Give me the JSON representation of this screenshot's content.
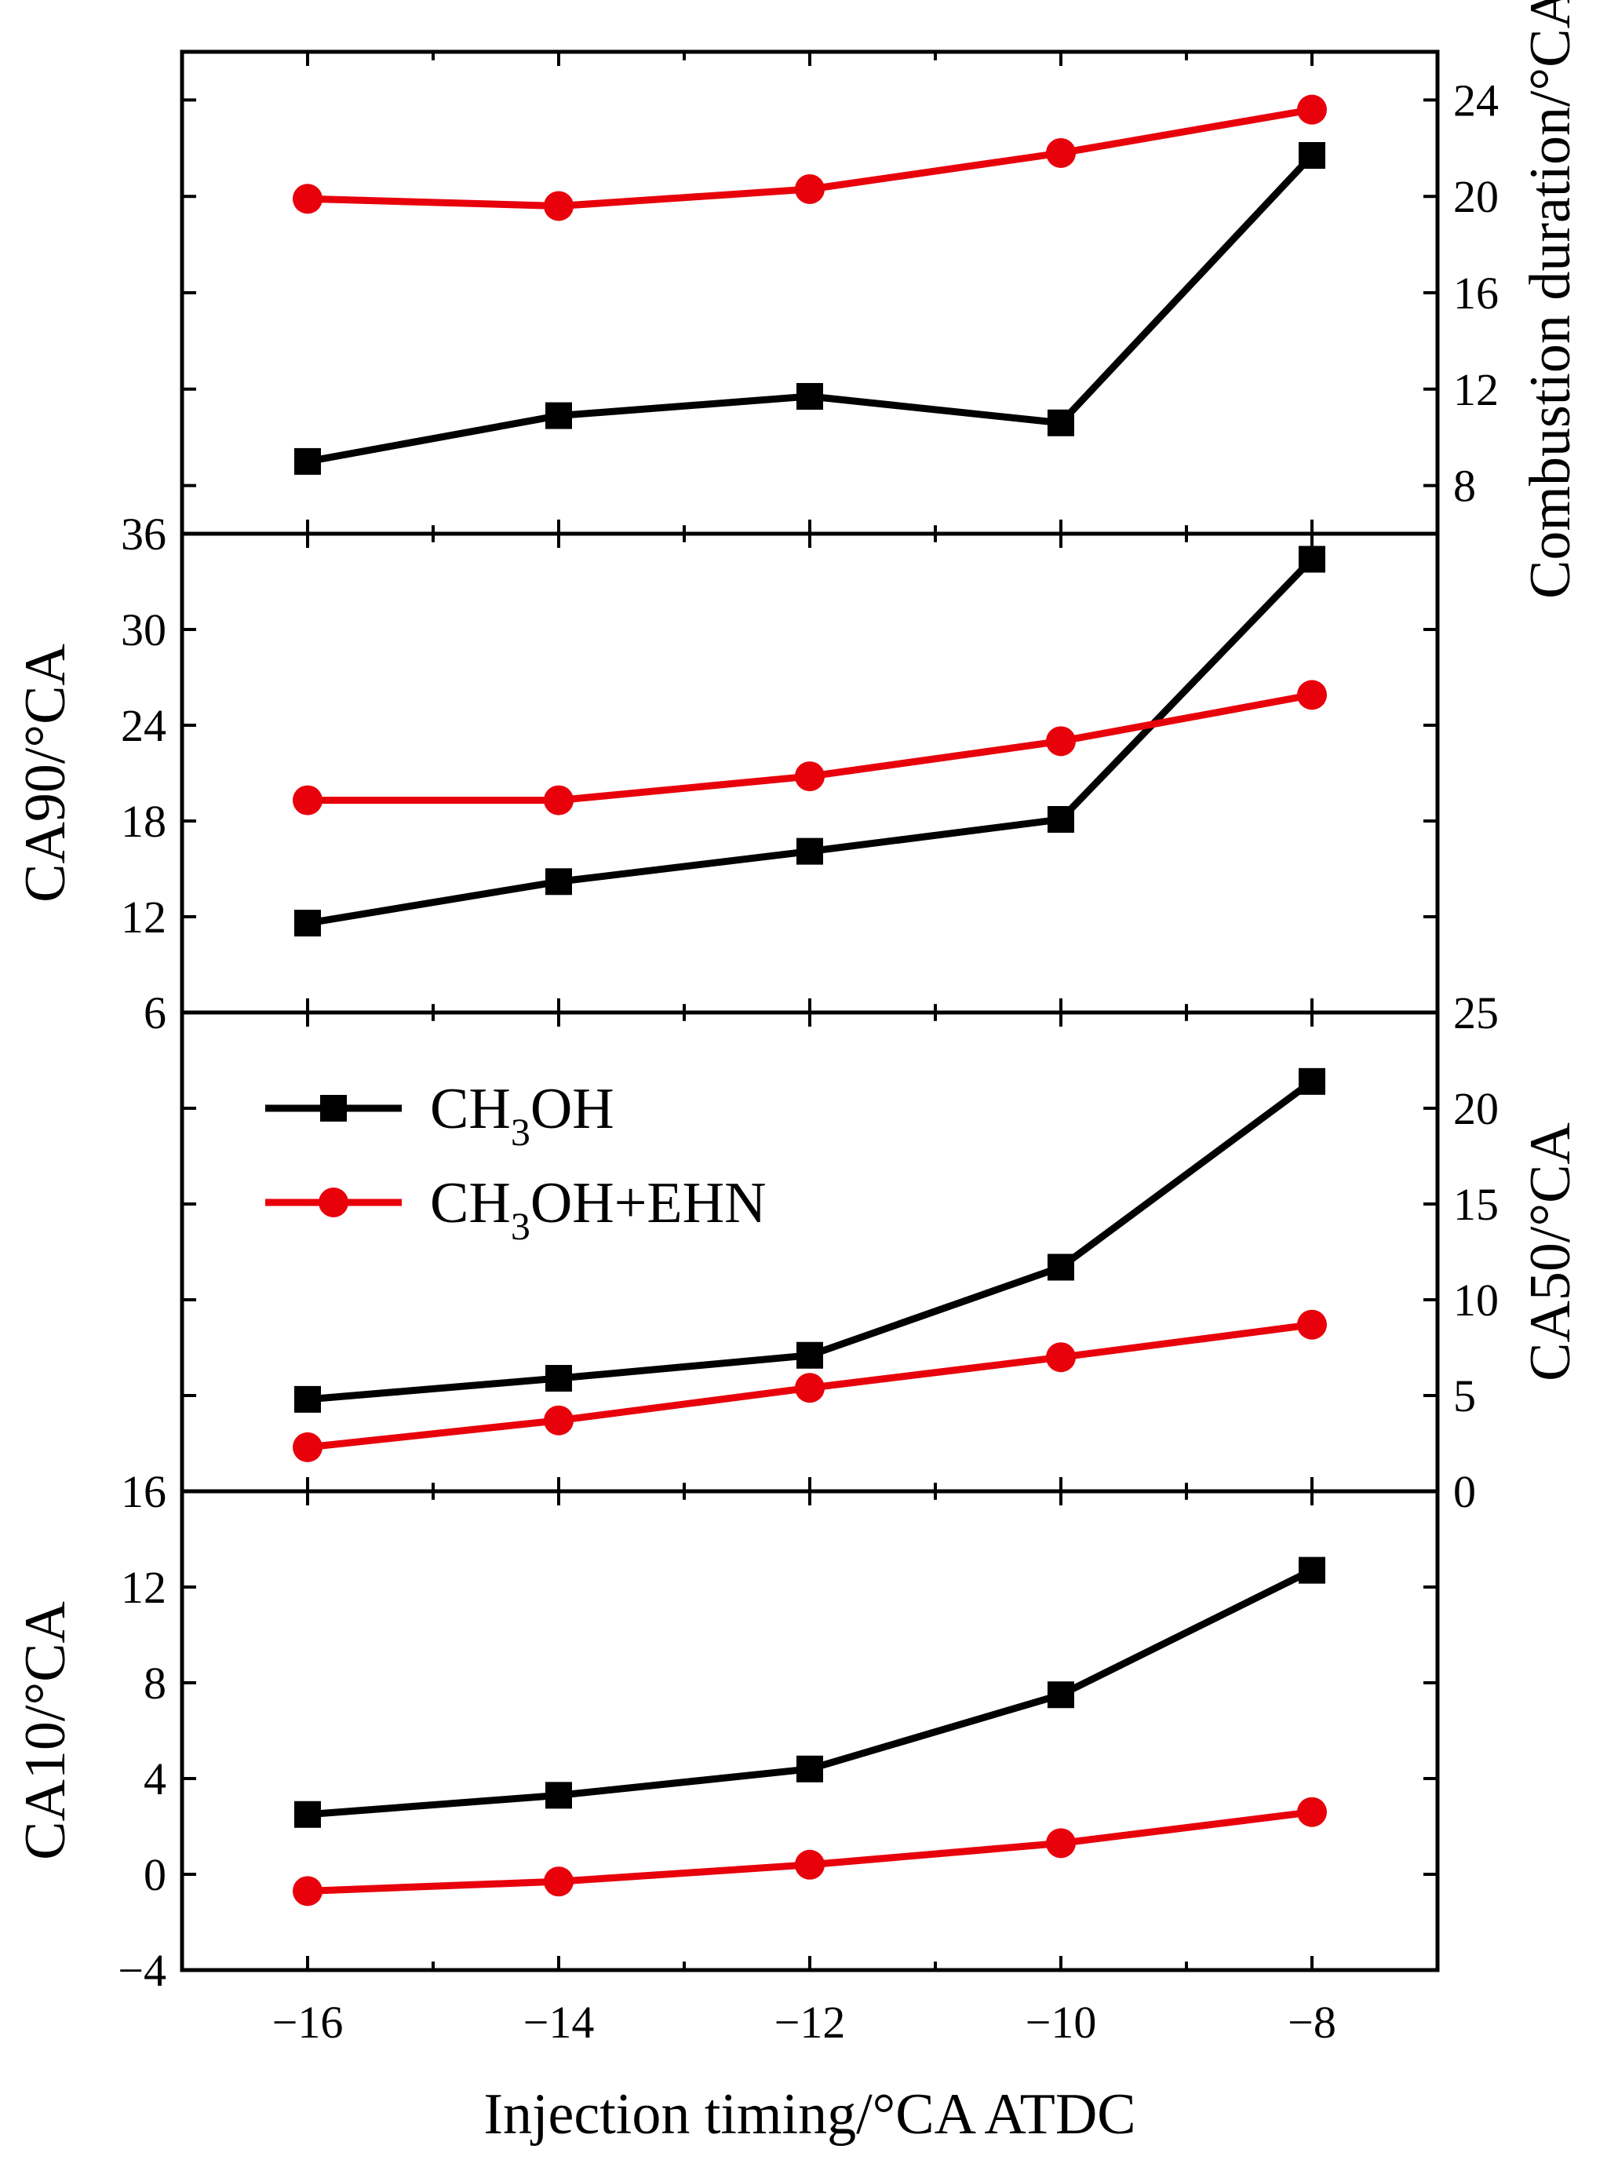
{
  "chart_data": [
    {
      "type": "line",
      "panel": "combustion-duration",
      "ylabel": "Combustion duration/°CA",
      "yaxis_side": "right",
      "ylim": [
        6,
        26
      ],
      "yticks": [
        8,
        12,
        16,
        20,
        24
      ],
      "x": [
        -16,
        -14,
        -12,
        -10,
        -8
      ],
      "series": [
        {
          "name": "CH₃OH",
          "values": [
            9.0,
            10.9,
            11.7,
            10.6,
            21.7
          ]
        },
        {
          "name": "CH₃OH+EHN",
          "values": [
            19.9,
            19.6,
            20.3,
            21.8,
            23.6
          ]
        }
      ]
    },
    {
      "type": "line",
      "panel": "ca90",
      "ylabel": "CA90/°CA",
      "yaxis_side": "left",
      "ylim": [
        6,
        36
      ],
      "yticks": [
        6,
        12,
        18,
        24,
        30,
        36
      ],
      "x": [
        -16,
        -14,
        -12,
        -10,
        -8
      ],
      "series": [
        {
          "name": "CH₃OH",
          "values": [
            11.6,
            14.2,
            16.1,
            18.1,
            34.4
          ]
        },
        {
          "name": "CH₃OH+EHN",
          "values": [
            19.3,
            19.3,
            20.8,
            23.0,
            25.9
          ]
        }
      ]
    },
    {
      "type": "line",
      "panel": "ca50",
      "ylabel": "CA50/°CA",
      "yaxis_side": "right",
      "ylim": [
        0,
        25
      ],
      "yticks": [
        0,
        5,
        10,
        15,
        20,
        25
      ],
      "x": [
        -16,
        -14,
        -12,
        -10,
        -8
      ],
      "series": [
        {
          "name": "CH₃OH",
          "values": [
            4.8,
            5.9,
            7.1,
            11.7,
            21.4
          ]
        },
        {
          "name": "CH₃OH+EHN",
          "values": [
            2.3,
            3.7,
            5.4,
            7.0,
            8.7
          ]
        }
      ]
    },
    {
      "type": "line",
      "panel": "ca10",
      "ylabel": "CA10/°CA",
      "yaxis_side": "left",
      "ylim": [
        -4,
        16
      ],
      "yticks": [
        -4,
        0,
        4,
        8,
        12,
        16
      ],
      "x": [
        -16,
        -14,
        -12,
        -10,
        -8
      ],
      "series": [
        {
          "name": "CH₃OH",
          "values": [
            2.5,
            3.3,
            4.4,
            7.5,
            12.7
          ]
        },
        {
          "name": "CH₃OH+EHN",
          "values": [
            -0.7,
            -0.3,
            0.4,
            1.3,
            2.6
          ]
        }
      ]
    }
  ],
  "xaxis": {
    "label": "Injection timing/°CA ATDC",
    "xlim": [
      -17,
      -7
    ],
    "xticks": [
      -16,
      -14,
      -12,
      -10,
      -8
    ]
  },
  "legend": {
    "location": "upper-left of CA50 panel",
    "entries": [
      {
        "main": "CH",
        "sub": "3",
        "rest": "OH",
        "marker": "square",
        "color": "#000000"
      },
      {
        "main": "CH",
        "sub": "3",
        "rest": "OH+EHN",
        "marker": "circle",
        "color": "#e8000b"
      }
    ]
  },
  "colors": {
    "ch3oh": "#000000",
    "ch3oh_ehn": "#e8000b",
    "axis": "#000000"
  }
}
